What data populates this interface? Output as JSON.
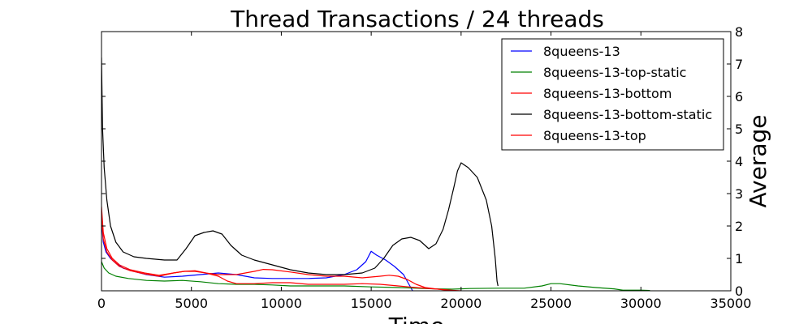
{
  "chart_data": {
    "type": "line",
    "title": "Thread Transactions / 24 threads",
    "xlabel": "Time",
    "ylabel": "Average",
    "xlim": [
      0,
      35000
    ],
    "ylim": [
      0,
      8
    ],
    "xticks": [
      0,
      5000,
      10000,
      15000,
      20000,
      25000,
      30000,
      35000
    ],
    "yticks": [
      0,
      1,
      2,
      3,
      4,
      5,
      6,
      7,
      8
    ],
    "y_axis_position": "right",
    "grid": false,
    "legend_position": "top-right",
    "series": [
      {
        "name": "8queens-13",
        "color": "#0000ff",
        "x": [
          0,
          100,
          250,
          500,
          800,
          1200,
          1800,
          2500,
          3500,
          4500,
          5500,
          6500,
          7500,
          8500,
          9500,
          10500,
          11500,
          12500,
          13500,
          14200,
          14700,
          15000,
          15300,
          15800,
          16300,
          16800,
          17100,
          17300
        ],
        "y": [
          2.2,
          1.5,
          1.2,
          1.0,
          0.85,
          0.7,
          0.6,
          0.5,
          0.42,
          0.45,
          0.5,
          0.55,
          0.5,
          0.4,
          0.38,
          0.38,
          0.38,
          0.4,
          0.5,
          0.65,
          0.9,
          1.22,
          1.1,
          0.95,
          0.75,
          0.5,
          0.2,
          0.0
        ]
      },
      {
        "name": "8queens-13-top-static",
        "color": "#008000",
        "x": [
          0,
          150,
          400,
          800,
          1500,
          2500,
          3500,
          4500,
          5500,
          6500,
          7500,
          8500,
          9500,
          10500,
          12000,
          13500,
          15000,
          16500,
          17500,
          18500,
          19500,
          20500,
          22000,
          23500,
          24500,
          25000,
          25500,
          26500,
          27500,
          28500,
          29000,
          30000,
          30500
        ],
        "y": [
          0.9,
          0.7,
          0.55,
          0.45,
          0.38,
          0.32,
          0.3,
          0.32,
          0.28,
          0.22,
          0.2,
          0.2,
          0.18,
          0.15,
          0.15,
          0.15,
          0.12,
          0.1,
          0.08,
          0.06,
          0.05,
          0.07,
          0.08,
          0.08,
          0.15,
          0.22,
          0.22,
          0.15,
          0.1,
          0.06,
          0.02,
          0.02,
          0.01
        ]
      },
      {
        "name": "8queens-13-bottom",
        "color": "#ff0000",
        "x": [
          0,
          100,
          300,
          600,
          1000,
          1600,
          2400,
          3200,
          4000,
          4600,
          5200,
          5800,
          6500,
          7000,
          7500,
          8500,
          9500,
          10500,
          11500,
          12500,
          13500,
          14500,
          15500,
          16500,
          17500,
          18500,
          19200,
          19700
        ],
        "y": [
          2.6,
          1.8,
          1.3,
          1.0,
          0.8,
          0.65,
          0.55,
          0.48,
          0.55,
          0.6,
          0.6,
          0.55,
          0.45,
          0.3,
          0.22,
          0.22,
          0.25,
          0.25,
          0.2,
          0.2,
          0.2,
          0.22,
          0.2,
          0.15,
          0.1,
          0.06,
          0.03,
          0.0
        ]
      },
      {
        "name": "8queens-13-bottom-static",
        "color": "#000000",
        "x": [
          0,
          60,
          150,
          300,
          500,
          800,
          1200,
          1800,
          2500,
          3500,
          4200,
          4700,
          5200,
          5700,
          6200,
          6700,
          7200,
          7800,
          8500,
          9500,
          10500,
          11500,
          12500,
          13500,
          14500,
          15200,
          15700,
          16200,
          16700,
          17200,
          17700,
          18200,
          18600,
          19000,
          19300,
          19600,
          19800,
          20000,
          20400,
          20900,
          21400,
          21700,
          21900,
          22000,
          22050
        ],
        "y": [
          7.2,
          5.0,
          3.8,
          2.8,
          2.0,
          1.5,
          1.2,
          1.05,
          1.0,
          0.95,
          0.95,
          1.3,
          1.7,
          1.8,
          1.85,
          1.75,
          1.4,
          1.1,
          0.95,
          0.8,
          0.65,
          0.55,
          0.5,
          0.5,
          0.55,
          0.7,
          1.0,
          1.4,
          1.6,
          1.65,
          1.55,
          1.3,
          1.45,
          1.9,
          2.5,
          3.2,
          3.7,
          3.95,
          3.8,
          3.5,
          2.8,
          2.0,
          1.0,
          0.3,
          0.15
        ]
      },
      {
        "name": "8queens-13-top",
        "color": "#ff0000",
        "x": [
          0,
          100,
          300,
          600,
          1000,
          1600,
          2400,
          3200,
          4000,
          4600,
          5200,
          5800,
          6500,
          7500,
          8500,
          9000,
          9500,
          10500,
          11500,
          12500,
          13500,
          14500,
          15500,
          16000,
          16500,
          17000,
          17500,
          18000,
          19000,
          20000
        ],
        "y": [
          2.3,
          1.6,
          1.2,
          0.95,
          0.75,
          0.62,
          0.52,
          0.45,
          0.55,
          0.6,
          0.62,
          0.55,
          0.5,
          0.5,
          0.6,
          0.66,
          0.65,
          0.58,
          0.5,
          0.45,
          0.45,
          0.4,
          0.45,
          0.48,
          0.45,
          0.35,
          0.2,
          0.1,
          0.03,
          0.0
        ]
      }
    ]
  }
}
